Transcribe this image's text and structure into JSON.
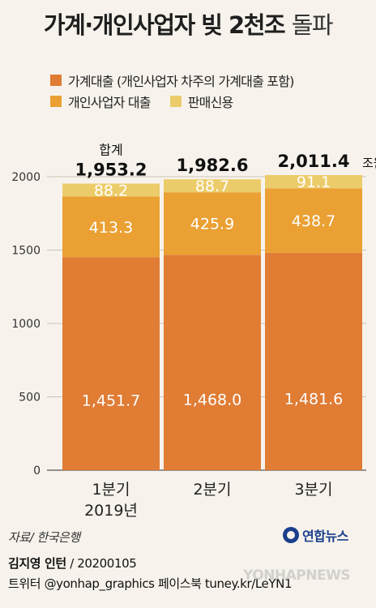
{
  "title_main": "가계·개인사업자 빚 2천조",
  "title_sub": "돌파",
  "legend": [
    {
      "label": "가계대출 (개인사업자 차주의 가계대출 포함)",
      "color": "#e07c34"
    },
    {
      "label": "개인사업자 대출",
      "color": "#eaa033"
    },
    {
      "label": "판매신용",
      "color": "#eccc6a"
    }
  ],
  "chart_data": {
    "type": "bar",
    "stacked": true,
    "categories": [
      "1분기",
      "2분기",
      "3분기"
    ],
    "category_sublabels": [
      "2019년",
      "",
      ""
    ],
    "series": [
      {
        "name": "가계대출 (개인사업자 차주의 가계대출 포함)",
        "values": [
          1451.7,
          1468.0,
          1481.6
        ],
        "labels": [
          "1,451.7",
          "1,468.0",
          "1,481.6"
        ],
        "color": "#e07c34"
      },
      {
        "name": "개인사업자 대출",
        "values": [
          413.3,
          425.9,
          438.7
        ],
        "labels": [
          "413.3",
          "425.9",
          "438.7"
        ],
        "color": "#eaa033"
      },
      {
        "name": "판매신용",
        "values": [
          88.2,
          88.7,
          91.1
        ],
        "labels": [
          "88.2",
          "88.7",
          "91.1"
        ],
        "color": "#eccc6a"
      }
    ],
    "totals": [
      1953.2,
      1982.6,
      2011.4
    ],
    "total_labels": [
      "1,953.2",
      "1,982.6",
      "2,011.4"
    ],
    "total_caption": "합계",
    "unit": "조원",
    "yticks": [
      0,
      500,
      1000,
      1500,
      2000
    ],
    "ylim": [
      0,
      2000
    ],
    "grid": true
  },
  "source": "자료/ 한국은행",
  "logo_text": "연합뉴스",
  "footer": {
    "author": "김지영 인턴",
    "date": "/ 20200105",
    "social": "트위터 @yonhap_graphics  페이스북 tuney.kr/LeYN1"
  },
  "watermark": "YONHAPNEWS"
}
